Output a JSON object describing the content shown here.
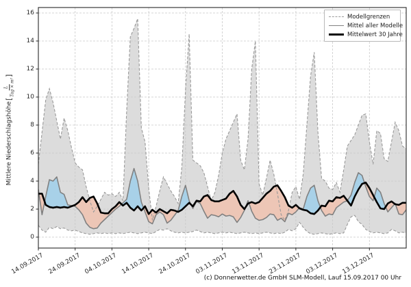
{
  "figure": {
    "caption": "(c) Donnerwetter.de GmbH SLM-Modell, Lauf 15.09.2017 00 Uhr"
  },
  "legend": {
    "items": [
      {
        "label": "Modellgrenzen",
        "style": "dashed-gray"
      },
      {
        "label": "Mittel aller Modelle",
        "style": "solid-gray"
      },
      {
        "label": "Mittelwert 30 Jahre",
        "style": "solid-black-thick"
      }
    ]
  },
  "axes": {
    "y": {
      "label_prefix": "Mittlere Niederschlagshöhe",
      "unit_numerator": "L",
      "unit_denominator": "Tag × m²",
      "bracket_open": "[",
      "bracket_close": "]"
    }
  },
  "chart_data": {
    "type": "line",
    "title": "",
    "xlabel": "",
    "ylabel": "Mittlere Niederschlagshöhe [L/(Tag × m²)]",
    "grid": true,
    "legend_position": "top-right-inside",
    "x_start_date": "14.09.2017",
    "x_end_date": "23.12.2017",
    "x_days": [
      0,
      100
    ],
    "x_tick_days": [
      0,
      10,
      20,
      30,
      40,
      50,
      60,
      70,
      80,
      90
    ],
    "x_tick_labels": [
      "14.09.2017",
      "24.09.2017",
      "04.10.2017",
      "14.10.2017",
      "24.10.2017",
      "03.11.2017",
      "13.11.2017",
      "23.11.2017",
      "03.12.2017",
      "13.12.2017"
    ],
    "ylim": [
      -0.8,
      16.4
    ],
    "yticks": [
      0,
      2,
      4,
      6,
      8,
      10,
      12,
      14,
      16
    ],
    "ytick_labels": [
      "0",
      "2",
      "4",
      "6",
      "8",
      "10",
      "12",
      "14",
      "16"
    ],
    "colors": {
      "envelope_fill": "#dcdcdc",
      "envelope_dash": "#999999",
      "model_mean_line": "#808080",
      "climate_mean_line": "#000000",
      "above_fill_blue": "#a8d1e8",
      "below_fill_pink": "#edc6b6",
      "grid": "#c9c9c9"
    },
    "series": [
      {
        "name": "Modellgrenzen (obere Grenze)",
        "role": "upper_bound",
        "values": [
          5.2,
          7.5,
          9.8,
          10.6,
          9.6,
          8.3,
          7.0,
          8.5,
          7.6,
          6.4,
          5.3,
          5.0,
          4.8,
          3.6,
          2.6,
          1.8,
          2.2,
          2.7,
          3.2,
          3.0,
          3.1,
          2.9,
          3.2,
          2.6,
          9.0,
          14.3,
          14.9,
          15.6,
          7.8,
          6.8,
          3.5,
          1.2,
          2.2,
          3.3,
          4.3,
          3.8,
          3.3,
          2.9,
          2.4,
          5.0,
          10.5,
          14.5,
          5.5,
          5.3,
          5.1,
          4.6,
          3.6,
          2.6,
          3.2,
          4.4,
          6.0,
          7.0,
          7.6,
          8.2,
          8.8,
          5.5,
          4.8,
          7.0,
          12.0,
          14.0,
          3.8,
          3.0,
          4.2,
          5.5,
          4.5,
          3.1,
          1.6,
          1.2,
          1.9,
          3.2,
          3.6,
          2.7,
          4.5,
          8.0,
          11.5,
          13.2,
          7.5,
          4.2,
          4.0,
          3.5,
          3.4,
          3.9,
          3.2,
          4.8,
          6.5,
          6.9,
          7.3,
          8.0,
          8.7,
          8.8,
          6.8,
          5.2,
          7.6,
          7.4,
          5.6,
          5.4,
          6.8,
          8.2,
          7.6,
          6.5,
          6.3
        ]
      },
      {
        "name": "Modellgrenzen (untere Grenze)",
        "role": "lower_bound",
        "values": [
          0.85,
          0.5,
          0.35,
          0.7,
          0.6,
          0.75,
          0.6,
          0.65,
          0.5,
          0.45,
          0.5,
          0.4,
          0.3,
          0.25,
          0.2,
          0.25,
          0.3,
          0.25,
          0.3,
          0.25,
          0.3,
          0.25,
          0.3,
          0.25,
          0.3,
          0.35,
          0.3,
          0.25,
          0.3,
          0.35,
          0.3,
          0.25,
          0.4,
          0.55,
          0.5,
          0.6,
          0.45,
          0.35,
          0.3,
          0.35,
          0.3,
          0.35,
          0.4,
          0.5,
          0.4,
          0.3,
          0.35,
          0.3,
          0.25,
          0.3,
          0.35,
          0.3,
          0.35,
          0.3,
          0.25,
          0.3,
          0.35,
          0.3,
          0.25,
          0.3,
          0.25,
          0.3,
          0.35,
          0.3,
          0.25,
          0.3,
          0.25,
          0.35,
          0.55,
          0.45,
          0.6,
          1.05,
          0.7,
          0.4,
          0.25,
          0.2,
          0.25,
          0.3,
          0.25,
          0.2,
          0.25,
          0.3,
          0.25,
          0.3,
          0.9,
          1.45,
          1.55,
          1.1,
          0.9,
          0.55,
          0.4,
          0.3,
          0.35,
          0.3,
          0.25,
          0.3,
          0.55,
          0.45,
          0.3,
          0.35,
          0.3
        ]
      },
      {
        "name": "Mittel aller Modelle",
        "role": "model_mean",
        "values": [
          3.4,
          1.6,
          2.9,
          4.1,
          4.0,
          4.3,
          3.2,
          3.05,
          2.3,
          2.25,
          2.2,
          1.95,
          1.6,
          1.0,
          0.7,
          0.6,
          0.65,
          1.0,
          1.25,
          1.5,
          1.75,
          2.0,
          2.2,
          2.45,
          2.7,
          4.0,
          4.9,
          4.0,
          2.5,
          1.8,
          1.1,
          0.95,
          1.6,
          1.8,
          1.6,
          1.0,
          1.2,
          1.55,
          1.9,
          2.9,
          3.7,
          2.6,
          2.05,
          2.55,
          2.4,
          1.85,
          1.35,
          1.6,
          1.55,
          1.45,
          1.65,
          1.5,
          1.55,
          1.45,
          1.05,
          1.4,
          1.9,
          2.6,
          1.85,
          1.35,
          1.2,
          1.25,
          1.4,
          1.65,
          1.6,
          1.2,
          1.35,
          1.1,
          1.7,
          1.6,
          1.8,
          2.1,
          2.0,
          2.9,
          3.5,
          3.7,
          2.6,
          1.9,
          1.5,
          1.65,
          1.6,
          2.1,
          2.3,
          2.5,
          2.6,
          3.0,
          3.9,
          4.6,
          4.4,
          3.6,
          2.9,
          2.6,
          3.5,
          3.2,
          2.4,
          1.8,
          2.1,
          2.4,
          1.65,
          1.6,
          1.95
        ]
      },
      {
        "name": "Mittelwert 30 Jahre",
        "role": "climate_mean",
        "values": [
          3.1,
          3.1,
          2.3,
          2.15,
          2.1,
          2.15,
          2.1,
          2.15,
          2.1,
          2.2,
          2.3,
          2.5,
          2.85,
          2.5,
          2.8,
          2.9,
          2.4,
          1.75,
          1.7,
          1.7,
          2.0,
          2.2,
          2.5,
          2.25,
          2.45,
          2.1,
          1.9,
          2.2,
          1.9,
          2.2,
          1.65,
          1.95,
          1.75,
          2.0,
          1.85,
          1.7,
          1.95,
          1.9,
          1.8,
          1.95,
          2.2,
          2.45,
          2.2,
          2.6,
          2.55,
          2.9,
          3.0,
          2.65,
          2.55,
          2.55,
          2.65,
          2.75,
          3.1,
          3.3,
          2.9,
          2.3,
          2.0,
          2.4,
          2.5,
          2.4,
          2.5,
          2.8,
          3.1,
          3.3,
          3.6,
          3.7,
          3.3,
          2.85,
          2.25,
          2.1,
          2.3,
          2.05,
          1.95,
          1.9,
          1.7,
          1.65,
          1.9,
          2.25,
          2.2,
          2.6,
          2.55,
          2.85,
          2.8,
          2.95,
          2.6,
          2.25,
          2.9,
          3.4,
          3.8,
          3.9,
          3.5,
          3.0,
          2.5,
          2.05,
          2.0,
          2.4,
          2.55,
          2.35,
          2.3,
          2.45,
          2.45
        ]
      }
    ]
  }
}
